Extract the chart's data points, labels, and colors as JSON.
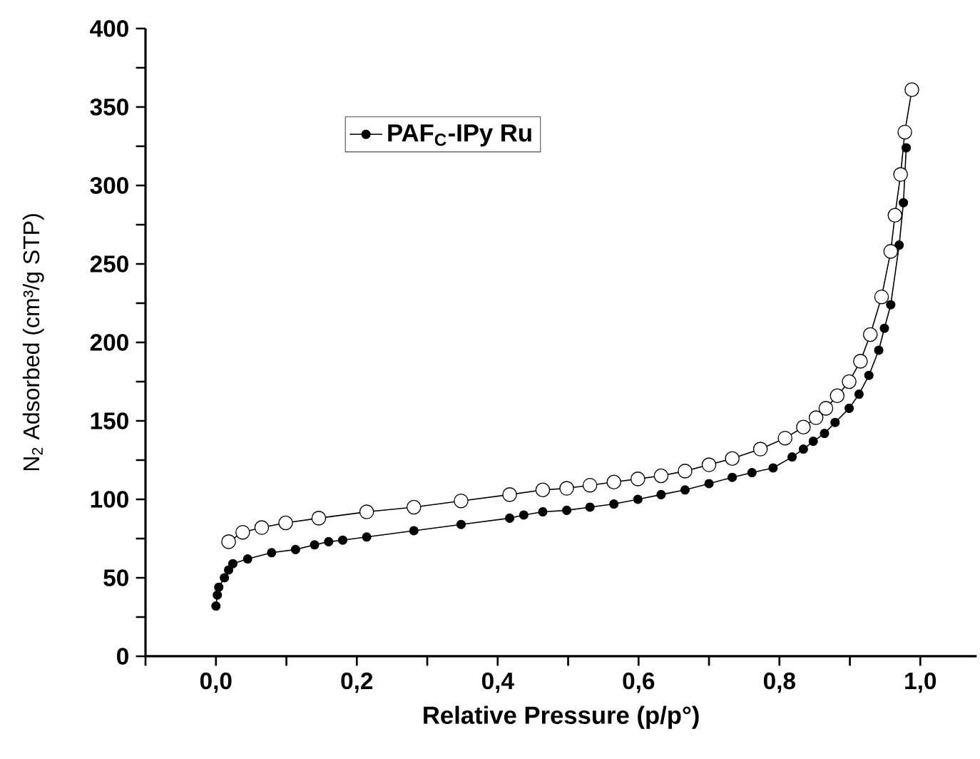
{
  "chart_data": {
    "type": "line",
    "xlabel": "Relative Pressure (p/p°)",
    "ylabel": "N$_{2}$ Adsorbed (cm³/g STP)",
    "xlim": [
      -0.1,
      1.08
    ],
    "ylim": [
      0,
      400
    ],
    "xticks": [
      {
        "value": -0.1,
        "label": null
      },
      {
        "value": 0,
        "label": "0,0"
      },
      {
        "value": 0.1,
        "label": null
      },
      {
        "value": 0.2,
        "label": "0,2"
      },
      {
        "value": 0.3,
        "label": null
      },
      {
        "value": 0.4,
        "label": "0,4"
      },
      {
        "value": 0.5,
        "label": null
      },
      {
        "value": 0.6,
        "label": "0,6"
      },
      {
        "value": 0.7,
        "label": null
      },
      {
        "value": 0.8,
        "label": "0,8"
      },
      {
        "value": 0.9,
        "label": null
      },
      {
        "value": 1.0,
        "label": "1,0"
      }
    ],
    "yticks": [
      0,
      {
        "value": 25,
        "label": null
      },
      50,
      {
        "value": 75,
        "label": null
      },
      100,
      {
        "value": 125,
        "label": null
      },
      150,
      {
        "value": 175,
        "label": null
      },
      200,
      {
        "value": 225,
        "label": null
      },
      250,
      {
        "value": 275,
        "label": null
      },
      300,
      {
        "value": 325,
        "label": null
      },
      350,
      {
        "value": 375,
        "label": null
      },
      400
    ],
    "grid": false,
    "legend": "top left",
    "marker": "circle",
    "line_style": "solid",
    "series": [
      {
        "name": "PAF$_{C}$-IPy Ru",
        "color": "#000000",
        "x": [
          0.0,
          0.002,
          0.004,
          0.012,
          0.018,
          0.024,
          0.045,
          0.079,
          0.113,
          0.14,
          0.16,
          0.18,
          0.214,
          0.281,
          0.348,
          0.417,
          0.437,
          0.464,
          0.498,
          0.531,
          0.565,
          0.599,
          0.632,
          0.666,
          0.7,
          0.733,
          0.761,
          0.791,
          0.818,
          0.834,
          0.848,
          0.864,
          0.879,
          0.899,
          0.913,
          0.927,
          0.941,
          0.949,
          0.958,
          0.97,
          0.976,
          0.98
        ],
        "values": [
          32,
          39,
          44,
          50,
          55,
          59,
          62,
          66,
          68,
          71,
          73,
          74,
          76,
          80,
          84,
          88,
          90,
          92,
          93,
          95,
          97,
          100,
          103,
          106,
          110,
          114,
          117,
          120,
          127,
          132,
          137,
          142,
          149,
          158,
          167,
          179,
          195,
          209,
          224,
          262,
          289,
          324
        ]
      },
      {
        "color": "#ffffff",
        "x": [
          0.988,
          0.978,
          0.972,
          0.964,
          0.958,
          0.945,
          0.929,
          0.915,
          0.899,
          0.882,
          0.866,
          0.852,
          0.834,
          0.808,
          0.773,
          0.733,
          0.7,
          0.666,
          0.632,
          0.599,
          0.565,
          0.531,
          0.498,
          0.464,
          0.417,
          0.348,
          0.281,
          0.214,
          0.146,
          0.099,
          0.065,
          0.038,
          0.018
        ],
        "values": [
          361,
          334,
          307,
          281,
          258,
          229,
          205,
          188,
          175,
          166,
          158,
          152,
          146,
          139,
          132,
          126,
          122,
          118,
          115,
          113,
          111,
          109,
          107,
          106,
          103,
          99,
          95,
          92,
          88,
          85,
          82,
          79,
          73
        ]
      }
    ]
  }
}
